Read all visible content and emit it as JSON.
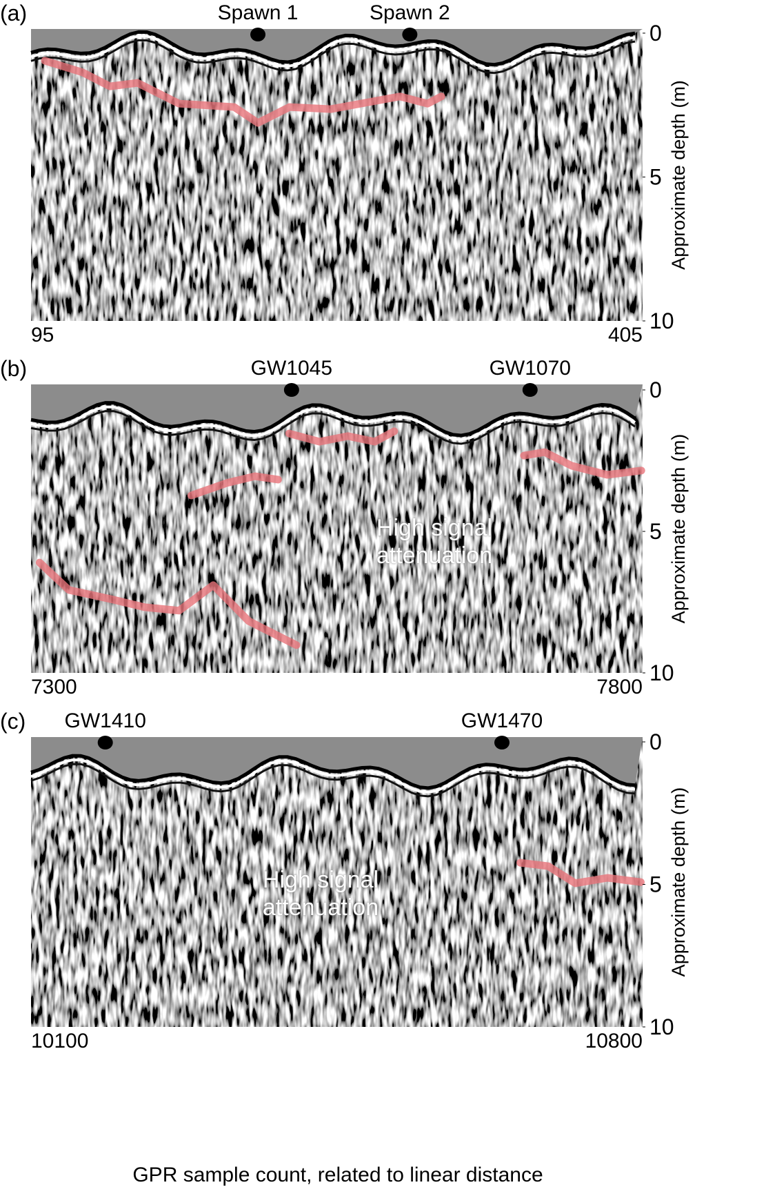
{
  "x_label": "GPR sample count, related to linear distance",
  "chart_data": [
    {
      "type": "radargram",
      "panel_label": "(a)",
      "y_label": "Approximate depth (m)",
      "xlim": [
        95,
        405
      ],
      "xticks": [
        95,
        405
      ],
      "ylim": [
        0,
        10
      ],
      "yticks": [
        0,
        5,
        10
      ],
      "markers": [
        {
          "label": "Spawn 1",
          "x": 210
        },
        {
          "label": "Spawn 2",
          "x": 287
        }
      ],
      "series": [
        {
          "color": "#e8747a",
          "x": [
            102,
            121,
            135,
            149,
            170,
            198,
            210,
            226,
            247,
            282,
            296,
            303
          ],
          "values": [
            0.96,
            1.36,
            1.85,
            1.73,
            2.45,
            2.57,
            3.12,
            2.57,
            2.64,
            2.2,
            2.45,
            2.2
          ]
        }
      ]
    },
    {
      "type": "radargram",
      "panel_label": "(b)",
      "y_label": "Approximate depth (m)",
      "xlim": [
        7300,
        7800
      ],
      "xticks": [
        7300,
        7800
      ],
      "ylim": [
        0,
        10
      ],
      "yticks": [
        0,
        5,
        10
      ],
      "markers": [
        {
          "label": "GW1045",
          "x": 7513
        },
        {
          "label": "GW1070",
          "x": 7708
        }
      ],
      "annotation": "High signal attenuation",
      "series": [
        {
          "color": "#e8747a",
          "x": [
            7511,
            7536,
            7559,
            7581,
            7597
          ],
          "values": [
            1.54,
            1.83,
            1.63,
            1.83,
            1.46
          ]
        },
        {
          "color": "#e8747a",
          "x": [
            7431,
            7460,
            7483,
            7502
          ],
          "values": [
            3.73,
            3.29,
            3.05,
            3.17
          ]
        },
        {
          "color": "#e8747a",
          "x": [
            7703,
            7720,
            7742,
            7771,
            7799
          ],
          "values": [
            2.32,
            2.2,
            2.68,
            3.0,
            2.85
          ]
        },
        {
          "color": "#e8747a",
          "x": [
            7307,
            7331,
            7365,
            7393,
            7421,
            7449,
            7478,
            7517
          ],
          "values": [
            6.1,
            7.07,
            7.39,
            7.68,
            7.8,
            6.9,
            8.17,
            9.02
          ]
        }
      ]
    },
    {
      "type": "radargram",
      "panel_label": "(c)",
      "y_label": "Approximate depth (m)",
      "xlim": [
        10100,
        10800
      ],
      "xticks": [
        10100,
        10800
      ],
      "ylim": [
        0,
        10
      ],
      "yticks": [
        0,
        5,
        10
      ],
      "markers": [
        {
          "label": "GW1410",
          "x": 10185
        },
        {
          "label": "GW1470",
          "x": 10639
        }
      ],
      "annotation": "High signal attenuation",
      "series": [
        {
          "color": "#e8747a",
          "x": [
            10660,
            10692,
            10723,
            10760,
            10798
          ],
          "values": [
            4.24,
            4.36,
            4.96,
            4.77,
            4.92
          ]
        }
      ]
    }
  ]
}
